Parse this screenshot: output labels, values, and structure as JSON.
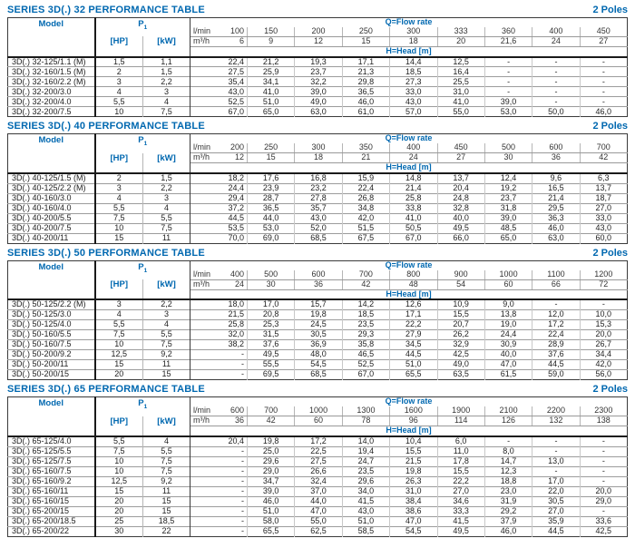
{
  "tables": [
    {
      "title": "SERIES 3D(.) 32 PERFORMANCE TABLE",
      "poles": "2 Poles",
      "header": {
        "model": "Model",
        "p": "P",
        "p_sub": "1",
        "hp": "[HP]",
        "kw": "[kW]",
        "flow": "Q=Flow rate",
        "head": "H=Head [m]",
        "lmin": "l/min",
        "m3h": "m³/h",
        "lmin_values": [
          "100",
          "150",
          "200",
          "250",
          "300",
          "333",
          "360",
          "400",
          "450"
        ],
        "m3h_values": [
          "6",
          "9",
          "12",
          "15",
          "18",
          "20",
          "21,6",
          "24",
          "27"
        ]
      },
      "rows": [
        {
          "model": "3D(.) 32-125/1.1 (M)",
          "hp": "1,5",
          "kw": "1,1",
          "heads": [
            "22,4",
            "21,2",
            "19,3",
            "17,1",
            "14,4",
            "12,5",
            "-",
            "-",
            "-"
          ]
        },
        {
          "model": "3D(.) 32-160/1.5 (M)",
          "hp": "2",
          "kw": "1,5",
          "heads": [
            "27,5",
            "25,9",
            "23,7",
            "21,3",
            "18,5",
            "16,4",
            "-",
            "-",
            "-"
          ]
        },
        {
          "model": "3D(.) 32-160/2.2 (M)",
          "hp": "3",
          "kw": "2,2",
          "heads": [
            "35,4",
            "34,1",
            "32,2",
            "29,8",
            "27,3",
            "25,5",
            "-",
            "-",
            "-"
          ]
        },
        {
          "model": "3D(.) 32-200/3.0",
          "hp": "4",
          "kw": "3",
          "heads": [
            "43,0",
            "41,0",
            "39,0",
            "36,5",
            "33,0",
            "31,0",
            "-",
            "-",
            "-"
          ]
        },
        {
          "model": "3D(.) 32-200/4.0",
          "hp": "5,5",
          "kw": "4",
          "heads": [
            "52,5",
            "51,0",
            "49,0",
            "46,0",
            "43,0",
            "41,0",
            "39,0",
            "-",
            "-"
          ]
        },
        {
          "model": "3D(.) 32-200/7.5",
          "hp": "10",
          "kw": "7,5",
          "heads": [
            "67,0",
            "65,0",
            "63,0",
            "61,0",
            "57,0",
            "55,0",
            "53,0",
            "50,0",
            "46,0"
          ]
        }
      ]
    },
    {
      "title": "SERIES 3D(.) 40 PERFORMANCE TABLE",
      "poles": "2 Poles",
      "header": {
        "model": "Model",
        "p": "P",
        "p_sub": "1",
        "hp": "[HP]",
        "kw": "[kW]",
        "flow": "Q=Flow rate",
        "head": "H=Head [m]",
        "lmin": "l/min",
        "m3h": "m³/h",
        "lmin_values": [
          "200",
          "250",
          "300",
          "350",
          "400",
          "450",
          "500",
          "600",
          "700"
        ],
        "m3h_values": [
          "12",
          "15",
          "18",
          "21",
          "24",
          "27",
          "30",
          "36",
          "42"
        ]
      },
      "rows": [
        {
          "model": "3D(.) 40-125/1.5 (M)",
          "hp": "2",
          "kw": "1,5",
          "heads": [
            "18,2",
            "17,6",
            "16,8",
            "15,9",
            "14,8",
            "13,7",
            "12,4",
            "9,6",
            "6,3"
          ]
        },
        {
          "model": "3D(.) 40-125/2.2 (M)",
          "hp": "3",
          "kw": "2,2",
          "heads": [
            "24,4",
            "23,9",
            "23,2",
            "22,4",
            "21,4",
            "20,4",
            "19,2",
            "16,5",
            "13,7"
          ]
        },
        {
          "model": "3D(.) 40-160/3.0",
          "hp": "4",
          "kw": "3",
          "heads": [
            "29,4",
            "28,7",
            "27,8",
            "26,8",
            "25,8",
            "24,8",
            "23,7",
            "21,4",
            "18,7"
          ]
        },
        {
          "model": "3D(.) 40-160/4.0",
          "hp": "5,5",
          "kw": "4",
          "heads": [
            "37,2",
            "36,5",
            "35,7",
            "34,8",
            "33,8",
            "32,8",
            "31,8",
            "29,5",
            "27,0"
          ]
        },
        {
          "model": "3D(.) 40-200/5.5",
          "hp": "7,5",
          "kw": "5,5",
          "heads": [
            "44,5",
            "44,0",
            "43,0",
            "42,0",
            "41,0",
            "40,0",
            "39,0",
            "36,3",
            "33,0"
          ]
        },
        {
          "model": "3D(.) 40-200/7.5",
          "hp": "10",
          "kw": "7,5",
          "heads": [
            "53,5",
            "53,0",
            "52,0",
            "51,5",
            "50,5",
            "49,5",
            "48,5",
            "46,0",
            "43,0"
          ]
        },
        {
          "model": "3D(.) 40-200/11",
          "hp": "15",
          "kw": "11",
          "heads": [
            "70,0",
            "69,0",
            "68,5",
            "67,5",
            "67,0",
            "66,0",
            "65,0",
            "63,0",
            "60,0"
          ]
        }
      ]
    },
    {
      "title": "SERIES 3D(.) 50 PERFORMANCE TABLE",
      "poles": "2 Poles",
      "header": {
        "model": "Model",
        "p": "P",
        "p_sub": "1",
        "hp": "[HP]",
        "kw": "[kW]",
        "flow": "Q=Flow rate",
        "head": "H=Head [m]",
        "lmin": "l/min",
        "m3h": "m³/h",
        "lmin_values": [
          "400",
          "500",
          "600",
          "700",
          "800",
          "900",
          "1000",
          "1100",
          "1200"
        ],
        "m3h_values": [
          "24",
          "30",
          "36",
          "42",
          "48",
          "54",
          "60",
          "66",
          "72"
        ]
      },
      "rows": [
        {
          "model": "3D(.) 50-125/2.2 (M)",
          "hp": "3",
          "kw": "2,2",
          "heads": [
            "18,0",
            "17,0",
            "15,7",
            "14,2",
            "12,6",
            "10,9",
            "9,0",
            "-",
            "-"
          ]
        },
        {
          "model": "3D(.) 50-125/3.0",
          "hp": "4",
          "kw": "3",
          "heads": [
            "21,5",
            "20,8",
            "19,8",
            "18,5",
            "17,1",
            "15,5",
            "13,8",
            "12,0",
            "10,0"
          ]
        },
        {
          "model": "3D(.) 50-125/4.0",
          "hp": "5,5",
          "kw": "4",
          "heads": [
            "25,8",
            "25,3",
            "24,5",
            "23,5",
            "22,2",
            "20,7",
            "19,0",
            "17,2",
            "15,3"
          ]
        },
        {
          "model": "3D(.) 50-160/5.5",
          "hp": "7,5",
          "kw": "5,5",
          "heads": [
            "32,0",
            "31,5",
            "30,5",
            "29,3",
            "27,9",
            "26,2",
            "24,4",
            "22,4",
            "20,0"
          ]
        },
        {
          "model": "3D(.) 50-160/7.5",
          "hp": "10",
          "kw": "7,5",
          "heads": [
            "38,2",
            "37,6",
            "36,9",
            "35,8",
            "34,5",
            "32,9",
            "30,9",
            "28,9",
            "26,7"
          ]
        },
        {
          "model": "3D(.) 50-200/9.2",
          "hp": "12,5",
          "kw": "9,2",
          "heads": [
            "-",
            "49,5",
            "48,0",
            "46,5",
            "44,5",
            "42,5",
            "40,0",
            "37,6",
            "34,4"
          ]
        },
        {
          "model": "3D(.) 50-200/11",
          "hp": "15",
          "kw": "11",
          "heads": [
            "-",
            "55,5",
            "54,5",
            "52,5",
            "51,0",
            "49,0",
            "47,0",
            "44,5",
            "42,0"
          ]
        },
        {
          "model": "3D(.) 50-200/15",
          "hp": "20",
          "kw": "15",
          "heads": [
            "-",
            "69,5",
            "68,5",
            "67,0",
            "65,5",
            "63,5",
            "61,5",
            "59,0",
            "56,0"
          ]
        }
      ]
    },
    {
      "title": "SERIES 3D(.) 65 PERFORMANCE TABLE",
      "poles": "2 Poles",
      "header": {
        "model": "Model",
        "p": "P",
        "p_sub": "1",
        "hp": "[HP]",
        "kw": "[kW]",
        "flow": "Q=Flow rate",
        "head": "H=Head [m]",
        "lmin": "l/min",
        "m3h": "m³/h",
        "lmin_values": [
          "600",
          "700",
          "1000",
          "1300",
          "1600",
          "1900",
          "2100",
          "2200",
          "2300"
        ],
        "m3h_values": [
          "36",
          "42",
          "60",
          "78",
          "96",
          "114",
          "126",
          "132",
          "138"
        ]
      },
      "rows": [
        {
          "model": "3D(.) 65-125/4.0",
          "hp": "5,5",
          "kw": "4",
          "heads": [
            "20,4",
            "19,8",
            "17,2",
            "14,0",
            "10,4",
            "6,0",
            "-",
            "-",
            "-"
          ]
        },
        {
          "model": "3D(.) 65-125/5.5",
          "hp": "7,5",
          "kw": "5,5",
          "heads": [
            "-",
            "25,0",
            "22,5",
            "19,4",
            "15,5",
            "11,0",
            "8,0",
            "-",
            "-"
          ]
        },
        {
          "model": "3D(.) 65-125/7.5",
          "hp": "10",
          "kw": "7,5",
          "heads": [
            "-",
            "29,6",
            "27,5",
            "24,7",
            "21,5",
            "17,8",
            "14,7",
            "13,0",
            "-"
          ]
        },
        {
          "model": "3D(.) 65-160/7.5",
          "hp": "10",
          "kw": "7,5",
          "heads": [
            "-",
            "29,0",
            "26,6",
            "23,5",
            "19,8",
            "15,5",
            "12,3",
            "-",
            "-"
          ]
        },
        {
          "model": "3D(.) 65-160/9.2",
          "hp": "12,5",
          "kw": "9,2",
          "heads": [
            "-",
            "34,7",
            "32,4",
            "29,6",
            "26,3",
            "22,2",
            "18,8",
            "17,0",
            "-"
          ]
        },
        {
          "model": "3D(.) 65-160/11",
          "hp": "15",
          "kw": "11",
          "heads": [
            "-",
            "39,0",
            "37,0",
            "34,0",
            "31,0",
            "27,0",
            "23,0",
            "22,0",
            "20,0"
          ]
        },
        {
          "model": "3D(.) 65-160/15",
          "hp": "20",
          "kw": "15",
          "heads": [
            "-",
            "46,0",
            "44,0",
            "41,5",
            "38,4",
            "34,6",
            "31,9",
            "30,5",
            "29,0"
          ]
        },
        {
          "model": "3D(.) 65-200/15",
          "hp": "20",
          "kw": "15",
          "heads": [
            "-",
            "51,0",
            "47,0",
            "43,0",
            "38,6",
            "33,3",
            "29,2",
            "27,0",
            "-"
          ]
        },
        {
          "model": "3D(.) 65-200/18.5",
          "hp": "25",
          "kw": "18,5",
          "heads": [
            "-",
            "58,0",
            "55,0",
            "51,0",
            "47,0",
            "41,5",
            "37,9",
            "35,9",
            "33,6"
          ]
        },
        {
          "model": "3D(.) 65-200/22",
          "hp": "30",
          "kw": "22",
          "heads": [
            "-",
            "65,5",
            "62,5",
            "58,5",
            "54,5",
            "49,5",
            "46,0",
            "44,5",
            "42,5"
          ]
        }
      ]
    }
  ]
}
